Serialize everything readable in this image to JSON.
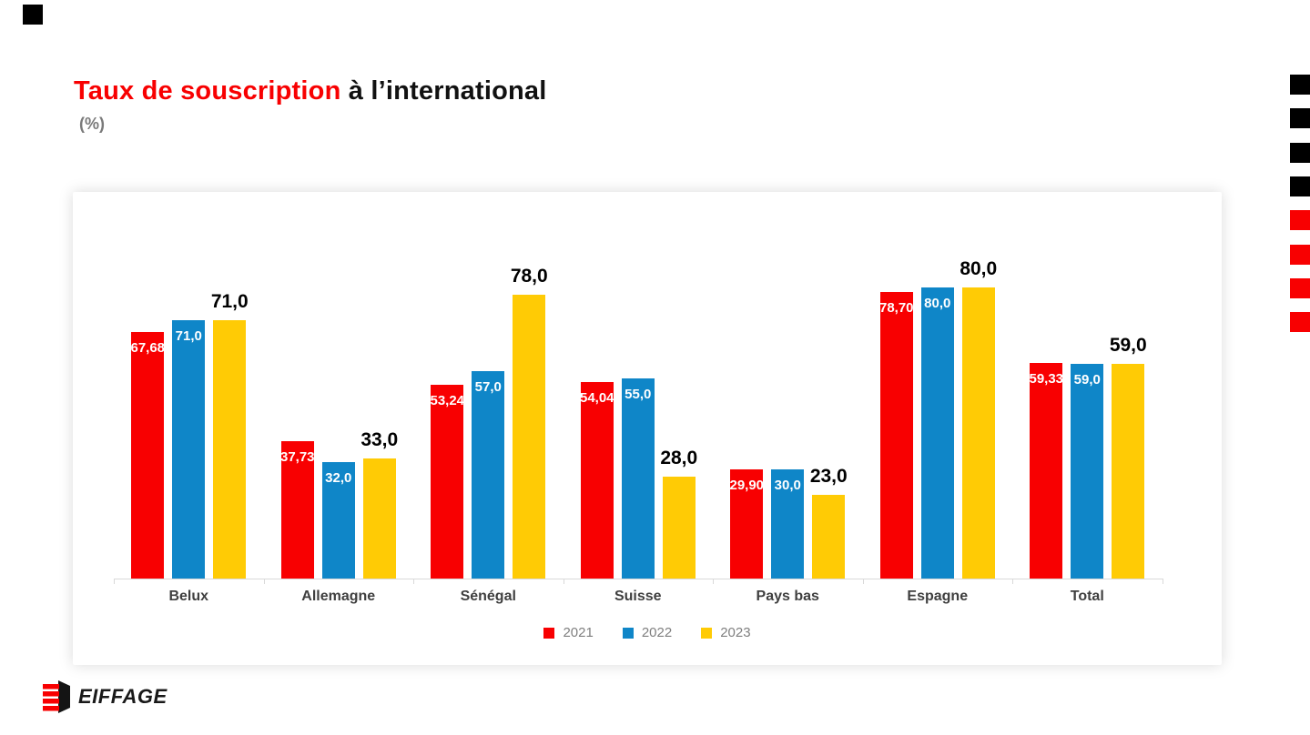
{
  "header": {
    "title_red": "Taux de souscription",
    "title_black": " à l’international",
    "subtitle": "(%)"
  },
  "chart_data": {
    "type": "bar",
    "title": "Taux de souscription à l’international (%)",
    "categories": [
      "Belux",
      "Allemagne",
      "Sénégal",
      "Suisse",
      "Pays bas",
      "Espagne",
      "Total"
    ],
    "series": [
      {
        "name": "2021",
        "color": "#f80001",
        "values": [
          67.68,
          37.73,
          53.24,
          54.04,
          29.9,
          78.7,
          59.33
        ],
        "labels": [
          "67,68",
          "37,73",
          "53,24",
          "54,04",
          "29,90",
          "78,70",
          "59,33"
        ],
        "label_style": "white-inside"
      },
      {
        "name": "2022",
        "color": "#0f86c8",
        "values": [
          71.0,
          32.0,
          57.0,
          55.0,
          30.0,
          80.0,
          59.0
        ],
        "labels": [
          "71,0",
          "32,0",
          "57,0",
          "55,0",
          "30,0",
          "80,0",
          "59,0"
        ],
        "label_style": "white-inside"
      },
      {
        "name": "2023",
        "color": "#ffcb05",
        "values": [
          71.0,
          33.0,
          78.0,
          28.0,
          23.0,
          80.0,
          59.0
        ],
        "labels": [
          "71,0",
          "33,0",
          "78,0",
          "28,0",
          "23,0",
          "80,0",
          "59,0"
        ],
        "label_style": "black-above"
      }
    ],
    "ylim": [
      0,
      100
    ],
    "grid": false,
    "axis_color": "#d9d9d9",
    "legend_position": "bottom"
  },
  "footer": {
    "brand": "EIFFAGE"
  },
  "decor": {
    "top_left_square_color": "#000000",
    "right_squares": [
      "#000000",
      "#000000",
      "#000000",
      "#000000",
      "#f80001",
      "#f80001",
      "#f80001",
      "#f80001"
    ]
  }
}
